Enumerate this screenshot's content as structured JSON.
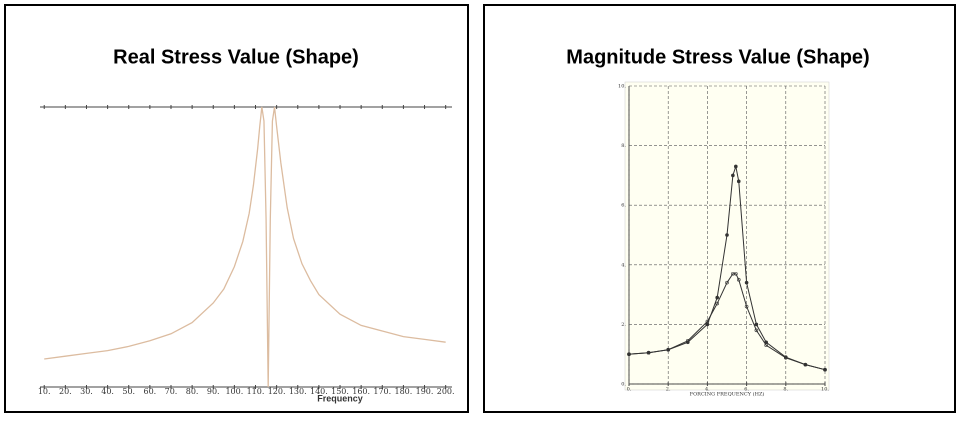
{
  "chart_data": [
    {
      "type": "line",
      "title": "Real Stress Value (Shape)",
      "x_label": "Frequency",
      "x": [
        10,
        20,
        30,
        40,
        50,
        60,
        70,
        80,
        90,
        95,
        100,
        104,
        107,
        109,
        111,
        112,
        113,
        114,
        115,
        116,
        117,
        118,
        119,
        120,
        122,
        125,
        128,
        132,
        136,
        140,
        150,
        160,
        170,
        180,
        190,
        200
      ],
      "series": [
        {
          "color": "#dcbca0",
          "values": [
            0.1,
            0.11,
            0.12,
            0.13,
            0.145,
            0.165,
            0.19,
            0.23,
            0.3,
            0.35,
            0.43,
            0.52,
            0.62,
            0.72,
            0.85,
            0.93,
            1.0,
            0.95,
            0.6,
            0,
            0.6,
            0.95,
            1.0,
            0.93,
            0.8,
            0.64,
            0.53,
            0.44,
            0.38,
            0.33,
            0.26,
            0.22,
            0.2,
            0.18,
            0.17,
            0.16
          ]
        }
      ],
      "xlim": [
        8,
        203
      ],
      "ylim": [
        0,
        1
      ],
      "xticks": [
        {
          "value": 10,
          "label": "10."
        },
        {
          "value": 20,
          "label": "20."
        },
        {
          "value": 30,
          "label": "30."
        },
        {
          "value": 40,
          "label": "40."
        },
        {
          "value": 50,
          "label": "50."
        },
        {
          "value": 60,
          "label": "60."
        },
        {
          "value": 70,
          "label": "70."
        },
        {
          "value": 80,
          "label": "80."
        },
        {
          "value": 90,
          "label": "90."
        },
        {
          "value": 100,
          "label": "100."
        },
        {
          "value": 110,
          "label": "110."
        },
        {
          "value": 120,
          "label": "120."
        },
        {
          "value": 130,
          "label": "130."
        },
        {
          "value": 140,
          "label": "140."
        },
        {
          "value": 150,
          "label": "150."
        },
        {
          "value": 160,
          "label": "160."
        },
        {
          "value": 170,
          "label": "170."
        },
        {
          "value": 180,
          "label": "180."
        },
        {
          "value": 190,
          "label": "190."
        },
        {
          "value": 200,
          "label": "200."
        }
      ],
      "grid": false
    },
    {
      "type": "line",
      "title": "Magnitude Stress Value (Shape)",
      "x_label": "FORCING FREQUENCY (HZ)",
      "x": [
        0,
        1,
        2,
        3,
        4,
        4.5,
        5,
        5.3,
        5.45,
        5.6,
        6,
        6.5,
        7,
        8,
        9,
        10
      ],
      "series": [
        {
          "color": "#333333",
          "values": [
            1.0,
            1.05,
            1.15,
            1.4,
            2.0,
            2.9,
            5.0,
            7.0,
            7.3,
            6.8,
            3.4,
            2.0,
            1.4,
            0.9,
            0.65,
            0.48
          ]
        },
        {
          "color": "#333333",
          "values": [
            1.0,
            1.05,
            1.15,
            1.45,
            2.1,
            2.7,
            3.4,
            3.7,
            3.7,
            3.5,
            2.6,
            1.8,
            1.3,
            0.88,
            0.65,
            0.48
          ]
        }
      ],
      "xlim": [
        0,
        10
      ],
      "ylim": [
        0,
        10
      ],
      "xticks": [
        {
          "value": 0,
          "label": "0."
        },
        {
          "value": 2,
          "label": "2."
        },
        {
          "value": 4,
          "label": "4."
        },
        {
          "value": 6,
          "label": "6."
        },
        {
          "value": 8,
          "label": "8."
        },
        {
          "value": 10,
          "label": "10."
        }
      ],
      "yticks": [
        {
          "value": 0,
          "label": "0."
        },
        {
          "value": 2,
          "label": "2."
        },
        {
          "value": 4,
          "label": "4."
        },
        {
          "value": 6,
          "label": "6."
        },
        {
          "value": 8,
          "label": "8."
        },
        {
          "value": 10,
          "label": "10."
        }
      ],
      "grid": true
    }
  ]
}
